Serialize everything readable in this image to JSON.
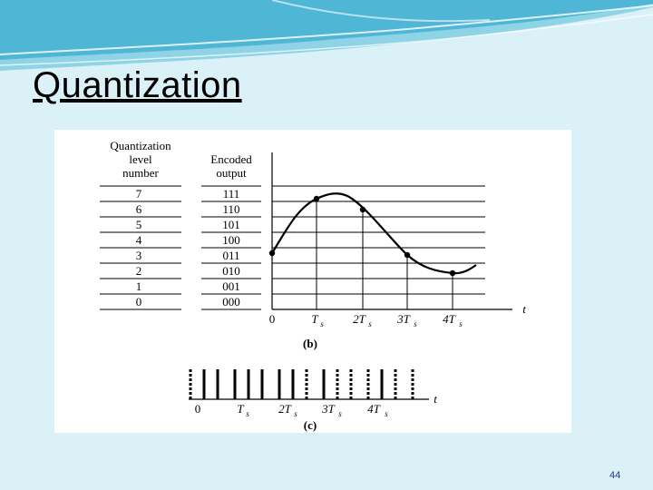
{
  "slide": {
    "title": "Quantization",
    "page_number": "44"
  },
  "figure": {
    "table_headers": {
      "level_line1": "Quantization",
      "level_line2": "level",
      "level_line3": "number",
      "code_line1": "Encoded",
      "code_line2": "output"
    },
    "levels": [
      {
        "level": "7",
        "code": "111"
      },
      {
        "level": "6",
        "code": "110"
      },
      {
        "level": "5",
        "code": "101"
      },
      {
        "level": "4",
        "code": "100"
      },
      {
        "level": "3",
        "code": "011"
      },
      {
        "level": "2",
        "code": "010"
      },
      {
        "level": "1",
        "code": "001"
      },
      {
        "level": "0",
        "code": "000"
      }
    ],
    "plot_b": {
      "caption": "(b)",
      "axis_var": "t",
      "ticks": [
        "0",
        "T",
        "2T",
        "3T",
        "4T"
      ],
      "tick_subscript": "s"
    },
    "plot_c": {
      "caption": "(c)",
      "axis_var": "t",
      "ticks": [
        "0",
        "T",
        "2T",
        "3T",
        "4T"
      ],
      "tick_subscript": "s"
    }
  }
}
